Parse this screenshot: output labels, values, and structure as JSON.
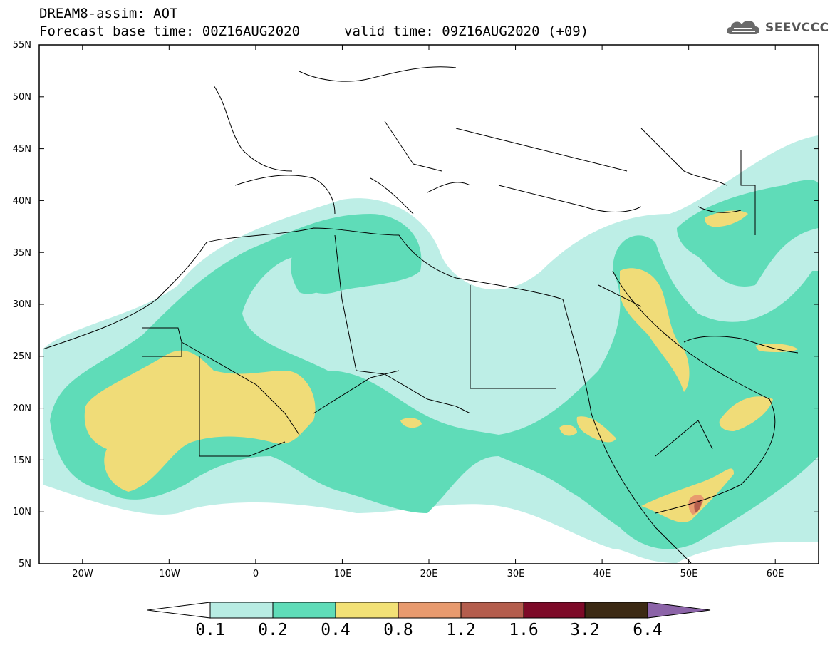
{
  "title": {
    "line1": "DREAM8-assim: AOT",
    "base": "Forecast base time: 00Z16AUG2020",
    "valid": "valid time: 09Z16AUG2020 (+09)"
  },
  "logo": {
    "text": "SEEVCCC",
    "icon": "cloud-logo-icon"
  },
  "map": {
    "lat_labels": [
      "55N",
      "50N",
      "45N",
      "40N",
      "35N",
      "30N",
      "25N",
      "20N",
      "15N",
      "10N",
      "5N"
    ],
    "lon_labels": [
      "20W",
      "10W",
      "0",
      "10E",
      "20E",
      "30E",
      "40E",
      "50E",
      "60E"
    ],
    "lat_range": [
      5,
      55
    ],
    "lon_range": [
      -25,
      65
    ]
  },
  "colorbar": {
    "levels": [
      "0.1",
      "0.2",
      "0.4",
      "0.8",
      "1.2",
      "1.6",
      "3.2",
      "6.4"
    ],
    "colors": [
      "#b8ece3",
      "#5fdcb8",
      "#f2e176",
      "#e89a6e",
      "#b45d4d",
      "#7d0a28",
      "#3c2a14",
      "#8c64a8"
    ],
    "extend_left_color": "#ffffff"
  },
  "colors": {
    "c1": "#bdeee6",
    "c2": "#5fdcb8",
    "c3": "#f0dc78",
    "c4": "#e89a6e",
    "c5": "#b45d4d"
  }
}
